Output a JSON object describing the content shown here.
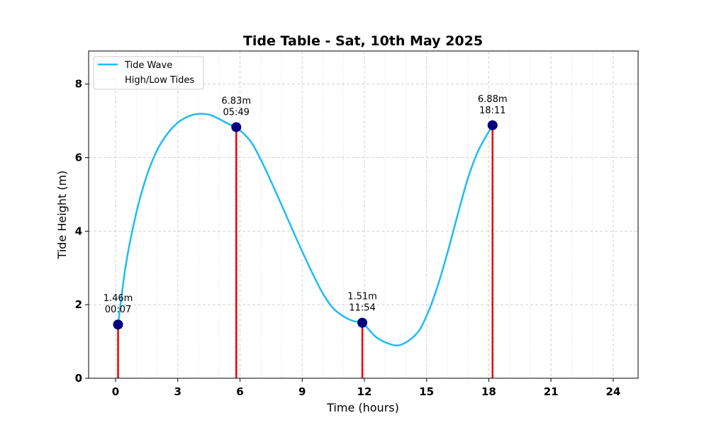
{
  "chart_data": {
    "type": "line",
    "title": "Tide Table - Sat, 10th May 2025",
    "xlabel": "Time (hours)",
    "ylabel": "Tide Height (m)",
    "xlim": [
      -1.3,
      25.2
    ],
    "ylim": [
      0,
      8.9
    ],
    "xticks": [
      0,
      3,
      6,
      9,
      12,
      15,
      18,
      21,
      24
    ],
    "yticks": [
      0,
      2,
      4,
      6,
      8
    ],
    "grid": true,
    "legend": {
      "placement": "top-left",
      "entries": [
        "Tide Wave",
        "High/Low Tides"
      ]
    },
    "series": [
      {
        "name": "Tide Wave",
        "color": "#1ebcf5",
        "x": [
          0.12,
          0.5,
          1,
          1.5,
          2,
          2.5,
          3,
          3.5,
          4,
          4.5,
          5,
          5.5,
          5.82,
          6.5,
          7,
          7.5,
          8,
          8.5,
          9,
          9.5,
          10,
          10.5,
          11,
          11.5,
          11.9,
          12.5,
          13,
          13.7,
          14.5,
          15,
          15.5,
          16,
          16.5,
          17,
          17.5,
          18.18
        ],
        "y": [
          1.46,
          3.1,
          4.5,
          5.5,
          6.2,
          6.65,
          6.95,
          7.12,
          7.19,
          7.17,
          7.05,
          6.9,
          6.83,
          6.45,
          5.95,
          5.35,
          4.72,
          4.08,
          3.45,
          2.85,
          2.3,
          1.9,
          1.68,
          1.55,
          1.51,
          1.15,
          0.98,
          0.9,
          1.2,
          1.7,
          2.45,
          3.4,
          4.45,
          5.45,
          6.2,
          6.88
        ]
      }
    ],
    "tides": {
      "name": "High/Low Tides",
      "stem_color": "#ee0000",
      "marker_color": "#000080",
      "points": [
        {
          "x": 0.12,
          "y": 1.46,
          "height_label": "1.46m",
          "time_label": "00:07"
        },
        {
          "x": 5.82,
          "y": 6.83,
          "height_label": "6.83m",
          "time_label": "05:49"
        },
        {
          "x": 11.9,
          "y": 1.51,
          "height_label": "1.51m",
          "time_label": "11:54"
        },
        {
          "x": 18.18,
          "y": 6.88,
          "height_label": "6.88m",
          "time_label": "18:11"
        }
      ]
    }
  }
}
